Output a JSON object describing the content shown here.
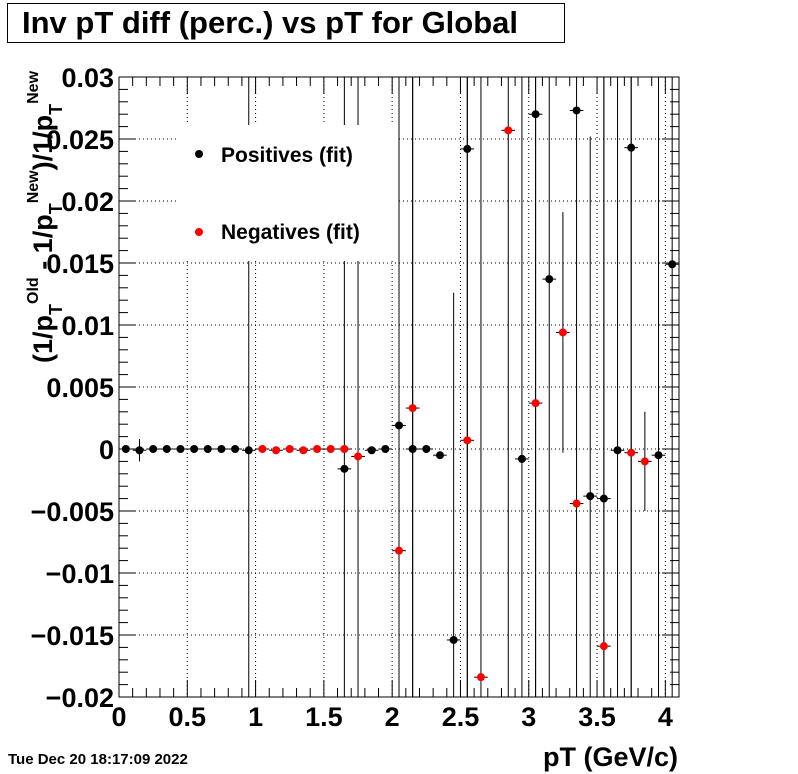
{
  "header": {
    "title": "Inv pT diff (perc.) vs pT for Global",
    "timestamp": "Tue Dec 20 18:17:09 2022"
  },
  "chart_data": {
    "type": "scatter",
    "title": "Inv pT diff (perc.) vs pT for Global",
    "xlabel": "pT (GeV/c)",
    "ylabel": "(1/p_T^Old - 1/p_T^New)/1/p_T^New",
    "xlim": [
      0,
      4.1
    ],
    "ylim": [
      -0.02,
      0.03
    ],
    "x_ticks": [
      0,
      0.5,
      1,
      1.5,
      2,
      2.5,
      3,
      3.5,
      4
    ],
    "x_tick_labels": [
      "0",
      "0.5",
      "1",
      "1.5",
      "2",
      "2.5",
      "3",
      "3.5",
      "4"
    ],
    "y_ticks": [
      -0.02,
      -0.015,
      -0.01,
      -0.005,
      0,
      0.005,
      0.01,
      0.015,
      0.02,
      0.025,
      0.03
    ],
    "y_tick_labels": [
      "−0.02",
      "−0.015",
      "−0.01",
      "−0.005",
      "0",
      "0.005",
      "0.01",
      "0.015",
      "0.02",
      "0.025",
      "0.03"
    ],
    "grid": true,
    "legend_position": "top-left",
    "series": [
      {
        "name": "Positives (fit)",
        "color": "#000000",
        "points": [
          {
            "x": 0.05,
            "y": 0.0,
            "yerr": 0.0
          },
          {
            "x": 0.15,
            "y": -0.0001,
            "yerr": 0.0009
          },
          {
            "x": 0.25,
            "y": 0.0,
            "yerr": 0.0
          },
          {
            "x": 0.35,
            "y": 0.0,
            "yerr": 0.0
          },
          {
            "x": 0.45,
            "y": 0.0,
            "yerr": 0.0
          },
          {
            "x": 0.55,
            "y": 0.0,
            "yerr": 0.0
          },
          {
            "x": 0.65,
            "y": 0.0,
            "yerr": 0.0
          },
          {
            "x": 0.75,
            "y": 0.0,
            "yerr": 0.0
          },
          {
            "x": 0.85,
            "y": 0.0,
            "yerr": 0.0
          },
          {
            "x": 0.95,
            "y": -0.0001,
            "yerr": 0.06
          },
          {
            "x": 1.65,
            "y": -0.0016,
            "yerr": 0.06
          },
          {
            "x": 1.85,
            "y": -0.0001,
            "yerr": 0.0
          },
          {
            "x": 1.95,
            "y": 0.0,
            "yerr": 0.0
          },
          {
            "x": 2.05,
            "y": 0.0019,
            "yerr": 0.06
          },
          {
            "x": 2.15,
            "y": 0.0,
            "yerr": 0.06
          },
          {
            "x": 2.25,
            "y": 0.0,
            "yerr": 0.0
          },
          {
            "x": 2.35,
            "y": -0.0005,
            "yerr": 0.0
          },
          {
            "x": 2.45,
            "y": -0.0154,
            "yerr": 0.028
          },
          {
            "x": 2.55,
            "y": 0.0242,
            "yerr": 0.06
          },
          {
            "x": 2.95,
            "y": -0.0008,
            "yerr": 0.06
          },
          {
            "x": 3.05,
            "y": 0.027,
            "yerr": 0.06
          },
          {
            "x": 3.15,
            "y": 0.0137,
            "yerr": 0.06
          },
          {
            "x": 3.35,
            "y": 0.0273,
            "yerr": 0.06
          },
          {
            "x": 3.45,
            "y": -0.0038,
            "yerr": 0.029
          },
          {
            "x": 3.55,
            "y": -0.004,
            "yerr": 0.06
          },
          {
            "x": 3.65,
            "y": -0.0001,
            "yerr": 0.06
          },
          {
            "x": 3.75,
            "y": 0.0243,
            "yerr": 0.06
          },
          {
            "x": 3.95,
            "y": -0.0005,
            "yerr": 0.06
          },
          {
            "x": 4.05,
            "y": 0.0149,
            "yerr": 0.06
          }
        ]
      },
      {
        "name": "Negatives (fit)",
        "color": "#ff0000",
        "points": [
          {
            "x": 1.05,
            "y": 0.0,
            "yerr": 0.0
          },
          {
            "x": 1.15,
            "y": -0.0001,
            "yerr": 0.0
          },
          {
            "x": 1.25,
            "y": 0.0,
            "yerr": 0.0
          },
          {
            "x": 1.35,
            "y": -0.0001,
            "yerr": 0.0
          },
          {
            "x": 1.45,
            "y": 0.0,
            "yerr": 0.0
          },
          {
            "x": 1.55,
            "y": 0.0,
            "yerr": 0.0
          },
          {
            "x": 1.65,
            "y": 0.0,
            "yerr": 0.0
          },
          {
            "x": 1.75,
            "y": -0.0006,
            "yerr": 0.06
          },
          {
            "x": 2.05,
            "y": -0.0082,
            "yerr": 0.024
          },
          {
            "x": 2.15,
            "y": 0.0033,
            "yerr": 0.06
          },
          {
            "x": 2.55,
            "y": 0.0007,
            "yerr": 0.06
          },
          {
            "x": 2.65,
            "y": -0.0184,
            "yerr": 0.06
          },
          {
            "x": 2.85,
            "y": 0.0257,
            "yerr": 0.06
          },
          {
            "x": 3.05,
            "y": 0.0037,
            "yerr": 0.06
          },
          {
            "x": 3.25,
            "y": 0.0094,
            "yerr": 0.0097
          },
          {
            "x": 3.35,
            "y": -0.0044,
            "yerr": 0.0
          },
          {
            "x": 3.55,
            "y": -0.0159,
            "yerr": 0.06
          },
          {
            "x": 3.75,
            "y": -0.0003,
            "yerr": 0.06
          },
          {
            "x": 3.85,
            "y": -0.001,
            "yerr": 0.004
          }
        ]
      }
    ]
  }
}
